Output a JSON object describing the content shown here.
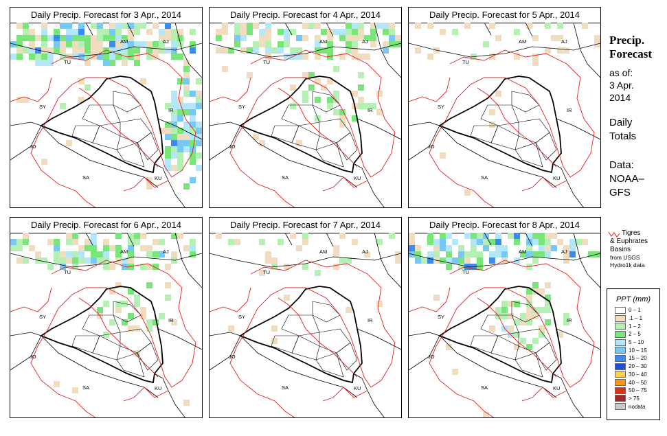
{
  "panels": [
    {
      "title": "Daily Precip. Forecast for  3 Apr., 2014",
      "precip_level": "heavy-north-east"
    },
    {
      "title": "Daily Precip. Forecast for  4 Apr., 2014",
      "precip_level": "moderate-north"
    },
    {
      "title": "Daily Precip. Forecast for  5 Apr., 2014",
      "precip_level": "light-north"
    },
    {
      "title": "Daily Precip. Forecast for  6 Apr., 2014",
      "precip_level": "moderate-north"
    },
    {
      "title": "Daily Precip. Forecast for  7 Apr., 2014",
      "precip_level": "light-north"
    },
    {
      "title": "Daily Precip. Forecast for  8 Apr., 2014",
      "precip_level": "heavy-north"
    }
  ],
  "map_labels": [
    "AM",
    "AJ",
    "TU",
    "SY",
    "IR",
    "JO",
    "SA",
    "KU"
  ],
  "sidebar": {
    "title_line1": "Precip.",
    "title_line2": "Forecast",
    "asof_line1": "as of:",
    "asof_line2": "3 Apr.",
    "asof_line3": "2014",
    "totals_line1": "Daily",
    "totals_line2": "Totals",
    "source_line1": "Data:",
    "source_line2": "NOAA–",
    "source_line3": "GFS"
  },
  "basin_legend": {
    "line1": "Tigres",
    "line2": "& Euphrates",
    "line3": "Basins",
    "line4": "from USGS",
    "line5": "Hydro1k data",
    "color": "#e02020"
  },
  "precip_legend": {
    "title": "PPT (mm)",
    "items": [
      {
        "label": "0 – 1",
        "color": "#ffffff"
      },
      {
        "label": ".1 – 1",
        "color": "#f0dcbe"
      },
      {
        "label": "1 – 2",
        "color": "#b4f0b4"
      },
      {
        "label": "2 – 5",
        "color": "#78e678"
      },
      {
        "label": "5 – 10",
        "color": "#b4e6fa"
      },
      {
        "label": "10 – 15",
        "color": "#78c8f5"
      },
      {
        "label": "15 – 20",
        "color": "#3c8cf0"
      },
      {
        "label": "20 – 30",
        "color": "#1e50d2"
      },
      {
        "label": "30 – 40",
        "color": "#fad250"
      },
      {
        "label": "40 – 50",
        "color": "#fa9614"
      },
      {
        "label": "50 – 75",
        "color": "#dc3214"
      },
      {
        "label": "> 75",
        "color": "#a02828"
      },
      {
        "label": "nodata",
        "color": "#c8c8c8"
      }
    ]
  }
}
